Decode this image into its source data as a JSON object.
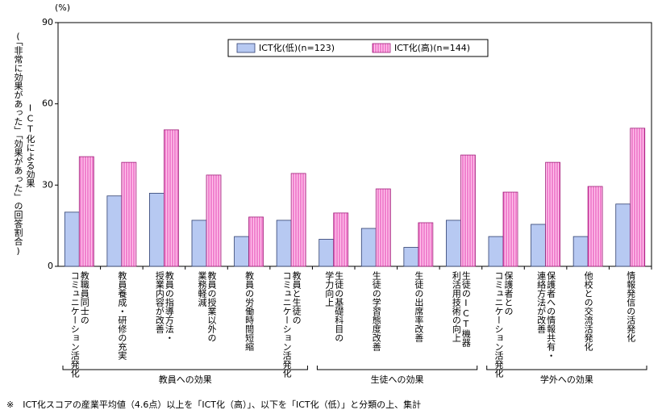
{
  "chart_data": {
    "type": "bar",
    "unit": "(%)",
    "y_label": [
      "ICT化による効果",
      "(「非常に効果があった」「効果があった」の回答割合)"
    ],
    "categories": [
      [
        "教職員同士の",
        "コミュニケーション活発化"
      ],
      [
        "教員養成・研修の充実"
      ],
      [
        "教員の指導方法・",
        "授業内容が改善"
      ],
      [
        "教員の授業以外の",
        "業務軽減"
      ],
      [
        "教員の労働時間短縮"
      ],
      [
        "教員と生徒の",
        "コミュニケーション活発化"
      ],
      [
        "生徒の基礎科目の",
        "学力向上"
      ],
      [
        "生徒の学習態度改善"
      ],
      [
        "生徒の出席率改善"
      ],
      [
        "生徒のICT機器",
        "利活用技術の向上"
      ],
      [
        "保護者との",
        "コミュニケーション活発化"
      ],
      [
        "保護者への情報共有・",
        "連絡方法が改善"
      ],
      [
        "他校との交流活発化"
      ],
      [
        "情報発信の活発化"
      ]
    ],
    "groups": [
      {
        "label": "教員への効果",
        "start": 0,
        "end": 5
      },
      {
        "label": "生徒への効果",
        "start": 6,
        "end": 9
      },
      {
        "label": "学外への効果",
        "start": 10,
        "end": 13
      }
    ],
    "series": [
      {
        "name": "ICT化(低)(n=123)",
        "color": "#b7c9f2",
        "values": [
          20,
          26,
          27,
          17,
          11,
          17,
          10,
          14,
          7,
          17,
          11,
          15.5,
          11,
          23
        ]
      },
      {
        "name": "ICT化(高)(n=144)",
        "color": "#ff9ee0",
        "values": [
          40.5,
          38.4,
          50.4,
          33.7,
          18.2,
          34.3,
          19.7,
          28.6,
          16.1,
          41.1,
          27.4,
          38.4,
          29.5,
          51
        ]
      }
    ],
    "ylim": [
      0,
      90
    ],
    "yticks": [
      0,
      30,
      60,
      90
    ],
    "footnote": "※　ICT化スコアの産業平均値（4.6点）以上を「ICT化（高）」、以下を「ICT化（低）」と分類の上、集計"
  }
}
